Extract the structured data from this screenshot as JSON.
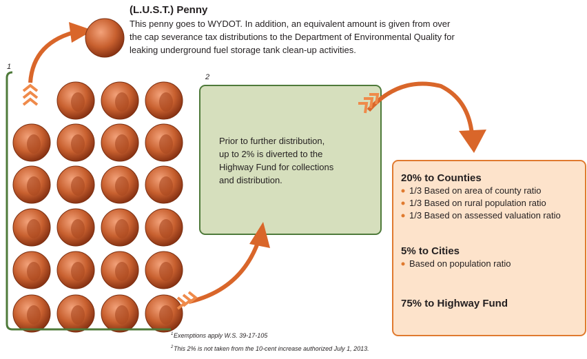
{
  "header": {
    "title": "(L.U.S.T.) Penny",
    "lines": [
      "This penny goes to WYDOT. In addition, an equivalent amount is given from over",
      "the cap severance tax distributions to the Department of Environmental Quality for",
      "leaking underground fuel storage tank clean-up activities."
    ]
  },
  "labels": {
    "bracket": "1",
    "box": "2"
  },
  "green_box": {
    "lines": [
      "Prior to further distribution,",
      "up to 2% is diverted to the",
      "Highway Fund for collections",
      "and distribution."
    ]
  },
  "orange_box": {
    "sections": [
      {
        "heading": "20% to Counties",
        "items": [
          "1/3 Based on area of county ratio",
          "1/3 Based on rural population ratio",
          "1/3 Based on assessed valuation ratio"
        ]
      },
      {
        "heading": "5% to Cities",
        "items": [
          "Based on population ratio"
        ]
      },
      {
        "heading": "75% to Highway Fund",
        "items": []
      }
    ]
  },
  "footnotes": [
    {
      "mark": "1",
      "text": "Exemptions apply W.S. 39-17-105"
    },
    {
      "mark": "2",
      "text": "This 2% is not taken from the 10-cent increase authorized July 1, 2013."
    }
  ]
}
